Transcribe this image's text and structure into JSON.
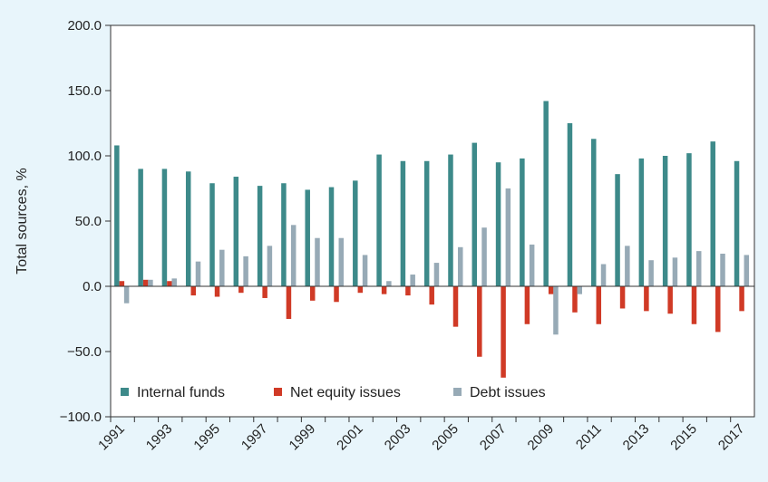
{
  "chart_data": {
    "type": "bar",
    "ylabel": "Total sources, %",
    "xlabel": "",
    "ylim": [
      -100,
      200
    ],
    "y_ticks": [
      "200.0",
      "150.0",
      "100.0",
      "50.0",
      "0.0",
      "−50.0",
      "−100.0"
    ],
    "legend_position": "bottom-left",
    "categories": [
      "1991",
      "1992",
      "1993",
      "1994",
      "1995",
      "1996",
      "1997",
      "1998",
      "1999",
      "2000",
      "2001",
      "2002",
      "2003",
      "2004",
      "2005",
      "2006",
      "2007",
      "2008",
      "2009",
      "2010",
      "2011",
      "2012",
      "2013",
      "2014",
      "2015",
      "2016",
      "2017"
    ],
    "x_tick_labels": [
      "1991",
      "1993",
      "1995",
      "1997",
      "1999",
      "2001",
      "2003",
      "2005",
      "2007",
      "2009",
      "2011",
      "2013",
      "2015",
      "2017"
    ],
    "series": [
      {
        "name": "Internal funds",
        "color": "#3d8a8a",
        "values": [
          108,
          90,
          90,
          88,
          79,
          84,
          77,
          79,
          74,
          76,
          81,
          101,
          96,
          96,
          101,
          110,
          95,
          98,
          142,
          125,
          113,
          86,
          98,
          100,
          102,
          111,
          96
        ]
      },
      {
        "name": "Net equity issues",
        "color": "#d03a26",
        "values": [
          4,
          5,
          4,
          -7,
          -8,
          -5,
          -9,
          -25,
          -11,
          -12,
          -5,
          -6,
          -7,
          -14,
          -31,
          -54,
          -70,
          -29,
          -6,
          -20,
          -29,
          -17,
          -19,
          -21,
          -29,
          -35,
          -19
        ]
      },
      {
        "name": "Debt issues",
        "color": "#97aab6",
        "values": [
          -13,
          5,
          6,
          19,
          28,
          23,
          31,
          47,
          37,
          37,
          24,
          4,
          9,
          18,
          30,
          45,
          75,
          32,
          -37,
          -6,
          17,
          31,
          20,
          22,
          27,
          25,
          24
        ]
      }
    ]
  }
}
